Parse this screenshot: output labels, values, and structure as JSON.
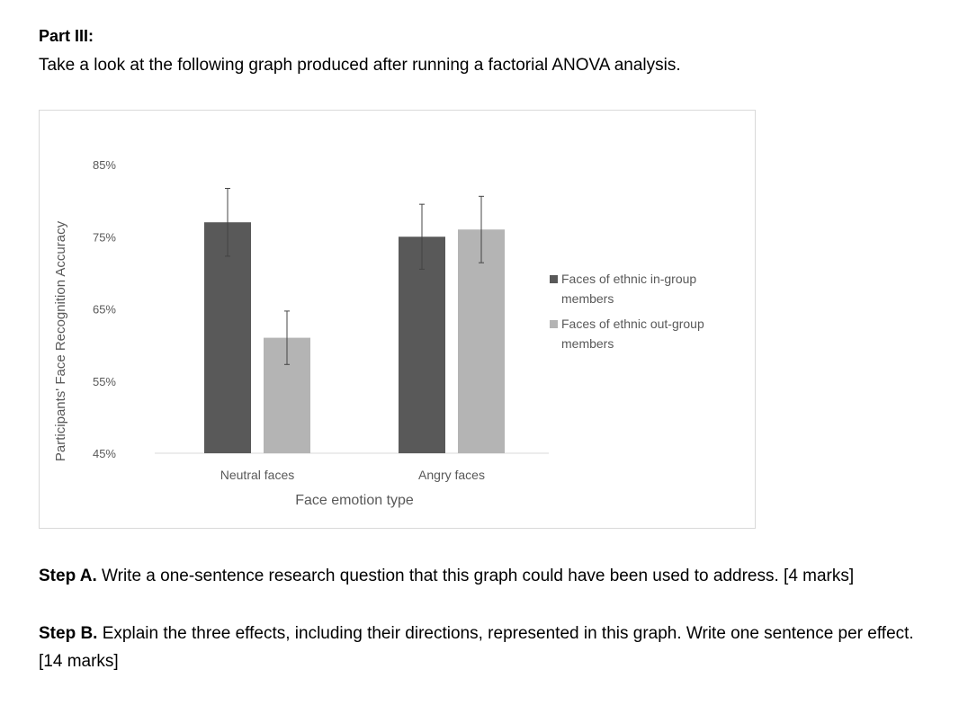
{
  "heading": "Part III:",
  "intro": "Take a look at the following graph produced after running a factorial ANOVA analysis.",
  "chart_data": {
    "type": "bar",
    "xlabel": "Face emotion type",
    "ylabel": "Participants' Face Recognition Accuracy",
    "categories": [
      "Neutral faces",
      "Angry faces"
    ],
    "ylim": [
      45,
      85
    ],
    "yticks": [
      "45%",
      "55%",
      "65%",
      "75%",
      "85%"
    ],
    "legend_position": "right",
    "grid": false,
    "series": [
      {
        "name": "Faces of ethnic in-group members",
        "legend_lines": [
          "Faces of ethnic in-group",
          "members"
        ],
        "color": "#595959",
        "values": [
          77,
          75
        ],
        "errors": [
          4.7,
          4.5
        ]
      },
      {
        "name": "Faces of ethnic out-group members",
        "legend_lines": [
          "Faces of ethnic out-group",
          "members"
        ],
        "color": "#b4b4b4",
        "values": [
          61,
          76
        ],
        "errors": [
          3.7,
          4.6
        ]
      }
    ]
  },
  "steps": [
    {
      "label": "Step A.",
      "text": " Write a one-sentence research question that this graph could have been used to address. [4 marks]"
    },
    {
      "label": "Step B.",
      "text": " Explain the three effects, including their directions, represented in this graph. Write one sentence per effect.  [14 marks]"
    }
  ]
}
